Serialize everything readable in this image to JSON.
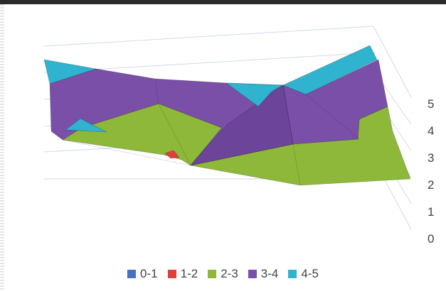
{
  "chart_data": {
    "type": "surface",
    "title": "",
    "xlabel": "",
    "ylabel": "",
    "zlim": [
      0,
      5
    ],
    "z_ticks": [
      "0",
      "1",
      "2",
      "3",
      "4",
      "5"
    ],
    "grid": true,
    "legend_position": "bottom",
    "series": [
      {
        "name": "0-1",
        "range": [
          0,
          1
        ],
        "color": "#4472C4"
      },
      {
        "name": "1-2",
        "range": [
          1,
          2
        ],
        "color": "#E0403A"
      },
      {
        "name": "2-3",
        "range": [
          2,
          3
        ],
        "color": "#8DB83A"
      },
      {
        "name": "3-4",
        "range": [
          3,
          4
        ],
        "color": "#7A4FA8"
      },
      {
        "name": "4-5",
        "range": [
          4,
          5
        ],
        "color": "#2FB3CF"
      }
    ]
  }
}
